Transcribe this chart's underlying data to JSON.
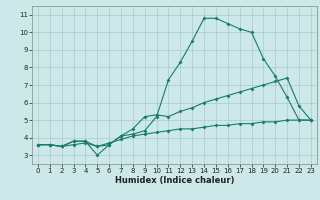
{
  "xlabel": "Humidex (Indice chaleur)",
  "xlim": [
    -0.5,
    23.5
  ],
  "ylim": [
    2.5,
    11.5
  ],
  "yticks": [
    3,
    4,
    5,
    6,
    7,
    8,
    9,
    10,
    11
  ],
  "xticks": [
    0,
    1,
    2,
    3,
    4,
    5,
    6,
    7,
    8,
    9,
    10,
    11,
    12,
    13,
    14,
    15,
    16,
    17,
    18,
    19,
    20,
    21,
    22,
    23
  ],
  "bg_color": "#cce8e8",
  "line_color": "#1a7a6e",
  "grid_color": "#aacccc",
  "line1_x": [
    0,
    1,
    2,
    3,
    4,
    5,
    6,
    7,
    8,
    9,
    10,
    11,
    12,
    13,
    14,
    15,
    16,
    17,
    18,
    19,
    20,
    21,
    22,
    23
  ],
  "line1_y": [
    3.6,
    3.6,
    3.5,
    3.8,
    3.8,
    3.5,
    3.6,
    4.1,
    4.2,
    4.4,
    5.2,
    7.3,
    8.3,
    9.5,
    10.8,
    10.8,
    10.5,
    10.2,
    10.0,
    8.5,
    7.5,
    6.3,
    5.0,
    5.0
  ],
  "line2_x": [
    0,
    1,
    2,
    3,
    4,
    5,
    6,
    7,
    8,
    9,
    10,
    11,
    12,
    13,
    14,
    15,
    16,
    17,
    18,
    19,
    20,
    21,
    22,
    23
  ],
  "line2_y": [
    3.6,
    3.6,
    3.5,
    3.8,
    3.8,
    3.0,
    3.6,
    4.1,
    4.5,
    5.2,
    5.3,
    5.2,
    5.5,
    5.7,
    6.0,
    6.2,
    6.4,
    6.6,
    6.8,
    7.0,
    7.2,
    7.4,
    5.8,
    5.0
  ],
  "line3_x": [
    0,
    1,
    2,
    3,
    4,
    5,
    6,
    7,
    8,
    9,
    10,
    11,
    12,
    13,
    14,
    15,
    16,
    17,
    18,
    19,
    20,
    21,
    22,
    23
  ],
  "line3_y": [
    3.6,
    3.6,
    3.5,
    3.6,
    3.7,
    3.5,
    3.7,
    3.9,
    4.1,
    4.2,
    4.3,
    4.4,
    4.5,
    4.5,
    4.6,
    4.7,
    4.7,
    4.8,
    4.8,
    4.9,
    4.9,
    5.0,
    5.0,
    5.0
  ],
  "label_fontsize": 5.0,
  "xlabel_fontsize": 6.0,
  "marker_size": 2.0,
  "linewidth": 0.8
}
